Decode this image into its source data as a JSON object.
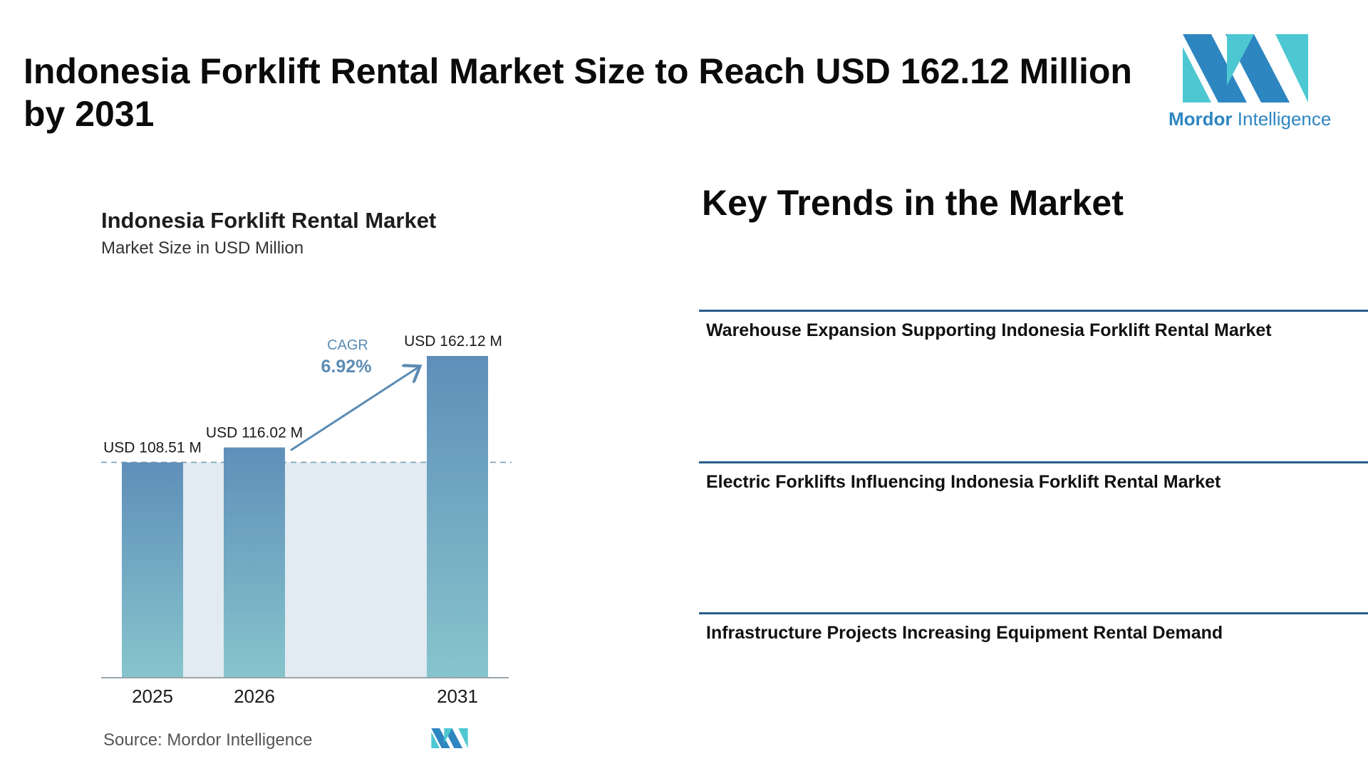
{
  "header": {
    "title": "Indonesia Forklift Rental Market Size to Reach USD 162.12 Million by 2031"
  },
  "logo": {
    "brand_bold": "Mordor",
    "brand_light": "Intelligence",
    "colors": {
      "dark": "#2e86c1",
      "light": "#4dc8d2"
    }
  },
  "chart_data": {
    "type": "bar",
    "title": "Indonesia Forklift Rental Market",
    "subtitle": "Market Size in USD Million",
    "categories": [
      "2025",
      "2026",
      "2031"
    ],
    "values": [
      108.51,
      116.02,
      162.12
    ],
    "data_labels": [
      "USD 108.51 M",
      "USD 116.02 M",
      "USD 162.12 M"
    ],
    "cagr_label": "CAGR",
    "cagr_value": "6.92%",
    "xlabel": "",
    "ylabel": "",
    "ylim": [
      0,
      162.12
    ],
    "grid": false,
    "legend": "none",
    "colors": {
      "bar_top": "#5f8fb9",
      "bar_bottom": "#87c4cc",
      "band": "#e2ebf2",
      "arrow": "#5b8cb5",
      "dash": "#7a9fb3"
    },
    "source": "Source:  Mordor Intelligence"
  },
  "trends": {
    "title": "Key Trends in the Market",
    "items": [
      "Warehouse Expansion Supporting Indonesia Forklift Rental Market",
      "Electric Forklifts Influencing Indonesia Forklift Rental Market",
      "Infrastructure Projects Increasing Equipment Rental Demand"
    ]
  }
}
